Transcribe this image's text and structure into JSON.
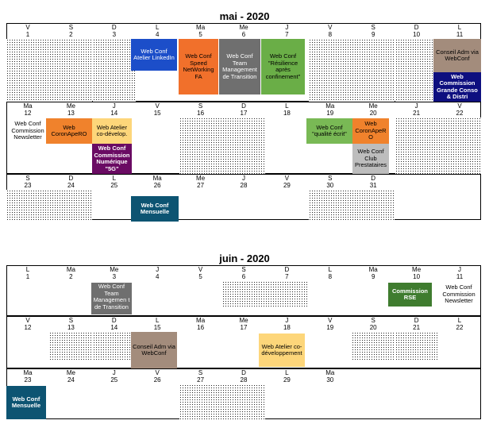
{
  "may": {
    "title": "mai - 2020",
    "weeks": [
      {
        "days": [
          [
            "V",
            "1"
          ],
          [
            "S",
            "2"
          ],
          [
            "D",
            "3"
          ],
          [
            "L",
            "4"
          ],
          [
            "Ma",
            "5"
          ],
          [
            "Me",
            "6"
          ],
          [
            "J",
            "7"
          ],
          [
            "V",
            "8"
          ],
          [
            "S",
            "9"
          ],
          [
            "D",
            "10"
          ],
          [
            "L",
            "11"
          ]
        ]
      },
      {
        "days": [
          [
            "Ma",
            "12"
          ],
          [
            "Me",
            "13"
          ],
          [
            "J",
            "14"
          ],
          [
            "V",
            "15"
          ],
          [
            "S",
            "16"
          ],
          [
            "D",
            "17"
          ],
          [
            "L",
            "18"
          ],
          [
            "Ma",
            "19"
          ],
          [
            "Me",
            "20"
          ],
          [
            "J",
            "21"
          ],
          [
            "V",
            "22"
          ]
        ]
      },
      {
        "days": [
          [
            "S",
            "23"
          ],
          [
            "D",
            "24"
          ],
          [
            "L",
            "25"
          ],
          [
            "Ma",
            "26"
          ],
          [
            "Me",
            "27"
          ],
          [
            "J",
            "28"
          ],
          [
            "V",
            "29"
          ],
          [
            "S",
            "30"
          ],
          [
            "D",
            "31"
          ]
        ]
      }
    ],
    "events": {
      "linkedin": "Web Conf Atelier LinkedIn",
      "speed_networking": "Web Conf Speed NetWorking FA",
      "team_management": "Web Conf Team Management de Transition",
      "resilience": "Web Conf \"Résilience après confinement\"",
      "conseil_adm": "Conseil Adm via WebConf",
      "grande_conso": "Web Commission Grande Conso & Distri",
      "commission_newsletter": "Web Conf Commission Newsletter",
      "coronapero_13": "Web CoronApeRO",
      "atelier_codevelop": "Web Atelier co-dévelop.",
      "numerique_5g": "Web Conf Commission Numérique \"5G\"",
      "qualite_ecrit": "Web Conf \"qualité écrit\"",
      "coronapero_20": "Web CoronApeR O",
      "club_prestataires": "Web Conf Club Prestataires",
      "mensuelle": "Web Conf Mensuelle"
    }
  },
  "june": {
    "title": "juin - 2020",
    "weeks": [
      {
        "days": [
          [
            "L",
            "1"
          ],
          [
            "Ma",
            "2"
          ],
          [
            "Me",
            "3"
          ],
          [
            "J",
            "4"
          ],
          [
            "V",
            "5"
          ],
          [
            "S",
            "6"
          ],
          [
            "D",
            "7"
          ],
          [
            "L",
            "8"
          ],
          [
            "Ma",
            "9"
          ],
          [
            "Me",
            "10"
          ],
          [
            "J",
            "11"
          ]
        ]
      },
      {
        "days": [
          [
            "V",
            "12"
          ],
          [
            "S",
            "13"
          ],
          [
            "D",
            "14"
          ],
          [
            "L",
            "15"
          ],
          [
            "Ma",
            "16"
          ],
          [
            "Me",
            "17"
          ],
          [
            "J",
            "18"
          ],
          [
            "V",
            "19"
          ],
          [
            "S",
            "20"
          ],
          [
            "D",
            "21"
          ],
          [
            "L",
            "22"
          ]
        ]
      },
      {
        "days": [
          [
            "Ma",
            "23"
          ],
          [
            "Me",
            "24"
          ],
          [
            "J",
            "25"
          ],
          [
            "V",
            "26"
          ],
          [
            "S",
            "27"
          ],
          [
            "D",
            "28"
          ],
          [
            "L",
            "29"
          ],
          [
            "Ma",
            "30"
          ]
        ]
      }
    ],
    "events": {
      "team_management": "Web Conf Team Managemen t de Transition",
      "commission_rse": "Commission RSE",
      "commission_newsletter": "Web Conf Commission Newsletter",
      "conseil_adm": "Conseil Adm via WebConf",
      "atelier_codeveloppement": "Web Atelier co-développement",
      "mensuelle": "Web Conf Mensuelle"
    }
  },
  "colors": {
    "blue": "#1c4ec9",
    "orange": "#f1702b",
    "gray": "#6f6f6f",
    "green": "#6aae47",
    "taupe": "#a38c7c",
    "navy": "#0e0f7f",
    "orange2": "#f0822c",
    "yellow": "#fdd67a",
    "purple": "#6a0b63",
    "lightgreen": "#79b955",
    "lightgray": "#bdbdbd",
    "teal": "#0d5472",
    "darkgreen": "#3f7c2f"
  }
}
